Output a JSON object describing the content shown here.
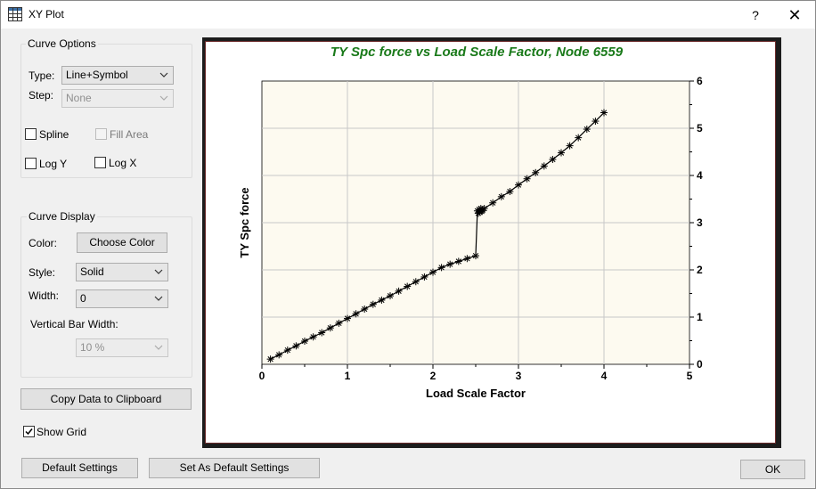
{
  "window": {
    "title": "XY Plot",
    "help_label": "?",
    "close_label": "✕"
  },
  "curve_options": {
    "title": "Curve Options",
    "type_label": "Type:",
    "type_value": "Line+Symbol",
    "step_label": "Step:",
    "step_value": "None",
    "spline_label": "Spline",
    "spline_checked": false,
    "fill_area_label": "Fill Area",
    "fill_area_checked": false,
    "log_y_label": "Log Y",
    "log_y_checked": false,
    "log_x_label": "Log X",
    "log_x_checked": false
  },
  "curve_display": {
    "title": "Curve Display",
    "color_label": "Color:",
    "choose_color_label": "Choose Color",
    "style_label": "Style:",
    "style_value": "Solid",
    "width_label": "Width:",
    "width_value": "0",
    "vbar_label": "Vertical Bar Width:",
    "vbar_value": "10 %"
  },
  "copy_button_label": "Copy Data to Clipboard",
  "show_grid_label": "Show Grid",
  "show_grid_checked": true,
  "footer": {
    "default_settings_label": "Default Settings",
    "set_default_label": "Set As Default Settings",
    "ok_label": "OK"
  },
  "chart_data": {
    "type": "line",
    "title": "TY Spc force  vs Load Scale Factor, Node 6559",
    "xlabel": "Load Scale Factor",
    "ylabel": "TY Spc force",
    "xlim": [
      0,
      5
    ],
    "ylim": [
      0,
      6
    ],
    "x_ticks": [
      "0",
      "1",
      "2",
      "3",
      "4",
      "5"
    ],
    "y_ticks": [
      "0",
      "1",
      "2",
      "3",
      "4",
      "5",
      "6"
    ],
    "y_axis_side": "right",
    "grid": true,
    "marker": "asterisk",
    "colors": {
      "title": "#1a7a1a",
      "plot_bg": "#fdfaf0",
      "grid": "#c8c8c8",
      "line": "#000000"
    },
    "series": [
      {
        "x": [
          0.1,
          0.2,
          0.3,
          0.4,
          0.5,
          0.6,
          0.7,
          0.8,
          0.9,
          1.0,
          1.1,
          1.2,
          1.3,
          1.4,
          1.5,
          1.6,
          1.7,
          1.8,
          1.9,
          2.0,
          2.1,
          2.2,
          2.3,
          2.4,
          2.5,
          2.52,
          2.53,
          2.54,
          2.55,
          2.56,
          2.57,
          2.58,
          2.6,
          2.7,
          2.8,
          2.9,
          3.0,
          3.1,
          3.2,
          3.3,
          3.4,
          3.5,
          3.6,
          3.7,
          3.8,
          3.9,
          4.0
        ],
        "y": [
          0.11,
          0.2,
          0.3,
          0.39,
          0.49,
          0.58,
          0.67,
          0.77,
          0.87,
          0.97,
          1.07,
          1.17,
          1.27,
          1.36,
          1.45,
          1.55,
          1.65,
          1.75,
          1.85,
          1.95,
          2.05,
          2.12,
          2.18,
          2.24,
          2.3,
          3.25,
          3.2,
          3.28,
          3.22,
          3.3,
          3.24,
          3.26,
          3.3,
          3.42,
          3.55,
          3.66,
          3.8,
          3.93,
          4.06,
          4.2,
          4.34,
          4.48,
          4.63,
          4.8,
          4.98,
          5.15,
          5.33
        ]
      }
    ]
  }
}
